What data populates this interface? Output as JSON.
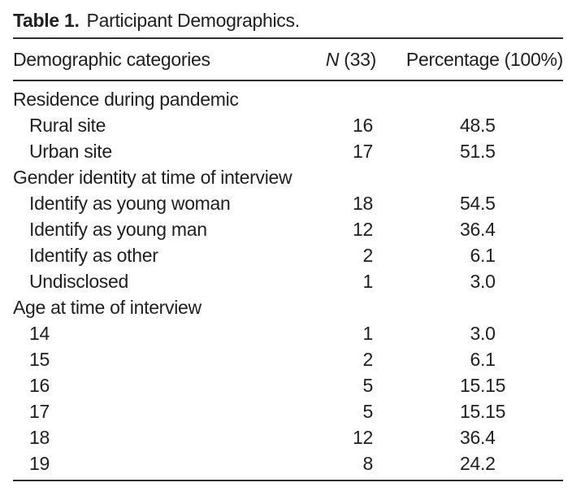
{
  "table": {
    "caption_label": "Table 1.",
    "caption_text": "Participant Demographics.",
    "columns": {
      "categories": "Demographic categories",
      "n_italic": "N",
      "n_rest": " (33)",
      "percentage": "Percentage (100%)"
    },
    "rows": [
      {
        "type": "section",
        "label": "Residence during pandemic",
        "n": "",
        "pct": ""
      },
      {
        "type": "item",
        "label": "Rural site",
        "n": "16",
        "pct": "48.5"
      },
      {
        "type": "item",
        "label": "Urban site",
        "n": "17",
        "pct": "51.5"
      },
      {
        "type": "section",
        "label": "Gender identity at time of interview",
        "n": "",
        "pct": ""
      },
      {
        "type": "item",
        "label": "Identify as young woman",
        "n": "18",
        "pct": "54.5"
      },
      {
        "type": "item",
        "label": "Identify as young man",
        "n": "12",
        "pct": "36.4"
      },
      {
        "type": "item",
        "label": "Identify as other",
        "n": "2",
        "pct": "6.1"
      },
      {
        "type": "item",
        "label": "Undisclosed",
        "n": "1",
        "pct": "3.0"
      },
      {
        "type": "section",
        "label": "Age at time of interview",
        "n": "",
        "pct": ""
      },
      {
        "type": "item",
        "label": "14",
        "n": "1",
        "pct": "3.0"
      },
      {
        "type": "item",
        "label": "15",
        "n": "2",
        "pct": "6.1"
      },
      {
        "type": "item",
        "label": "16",
        "n": "5",
        "pct": "15.15"
      },
      {
        "type": "item",
        "label": "17",
        "n": "5",
        "pct": "15.15"
      },
      {
        "type": "item",
        "label": "18",
        "n": "12",
        "pct": "36.4"
      },
      {
        "type": "item",
        "label": "19",
        "n": "8",
        "pct": "24.2"
      }
    ],
    "totals": {
      "n_total": "33",
      "percentage_total": "100%"
    }
  },
  "colors": {
    "text": "#1f1f1f",
    "rule": "#2e2e2e",
    "background": "#ffffff"
  }
}
